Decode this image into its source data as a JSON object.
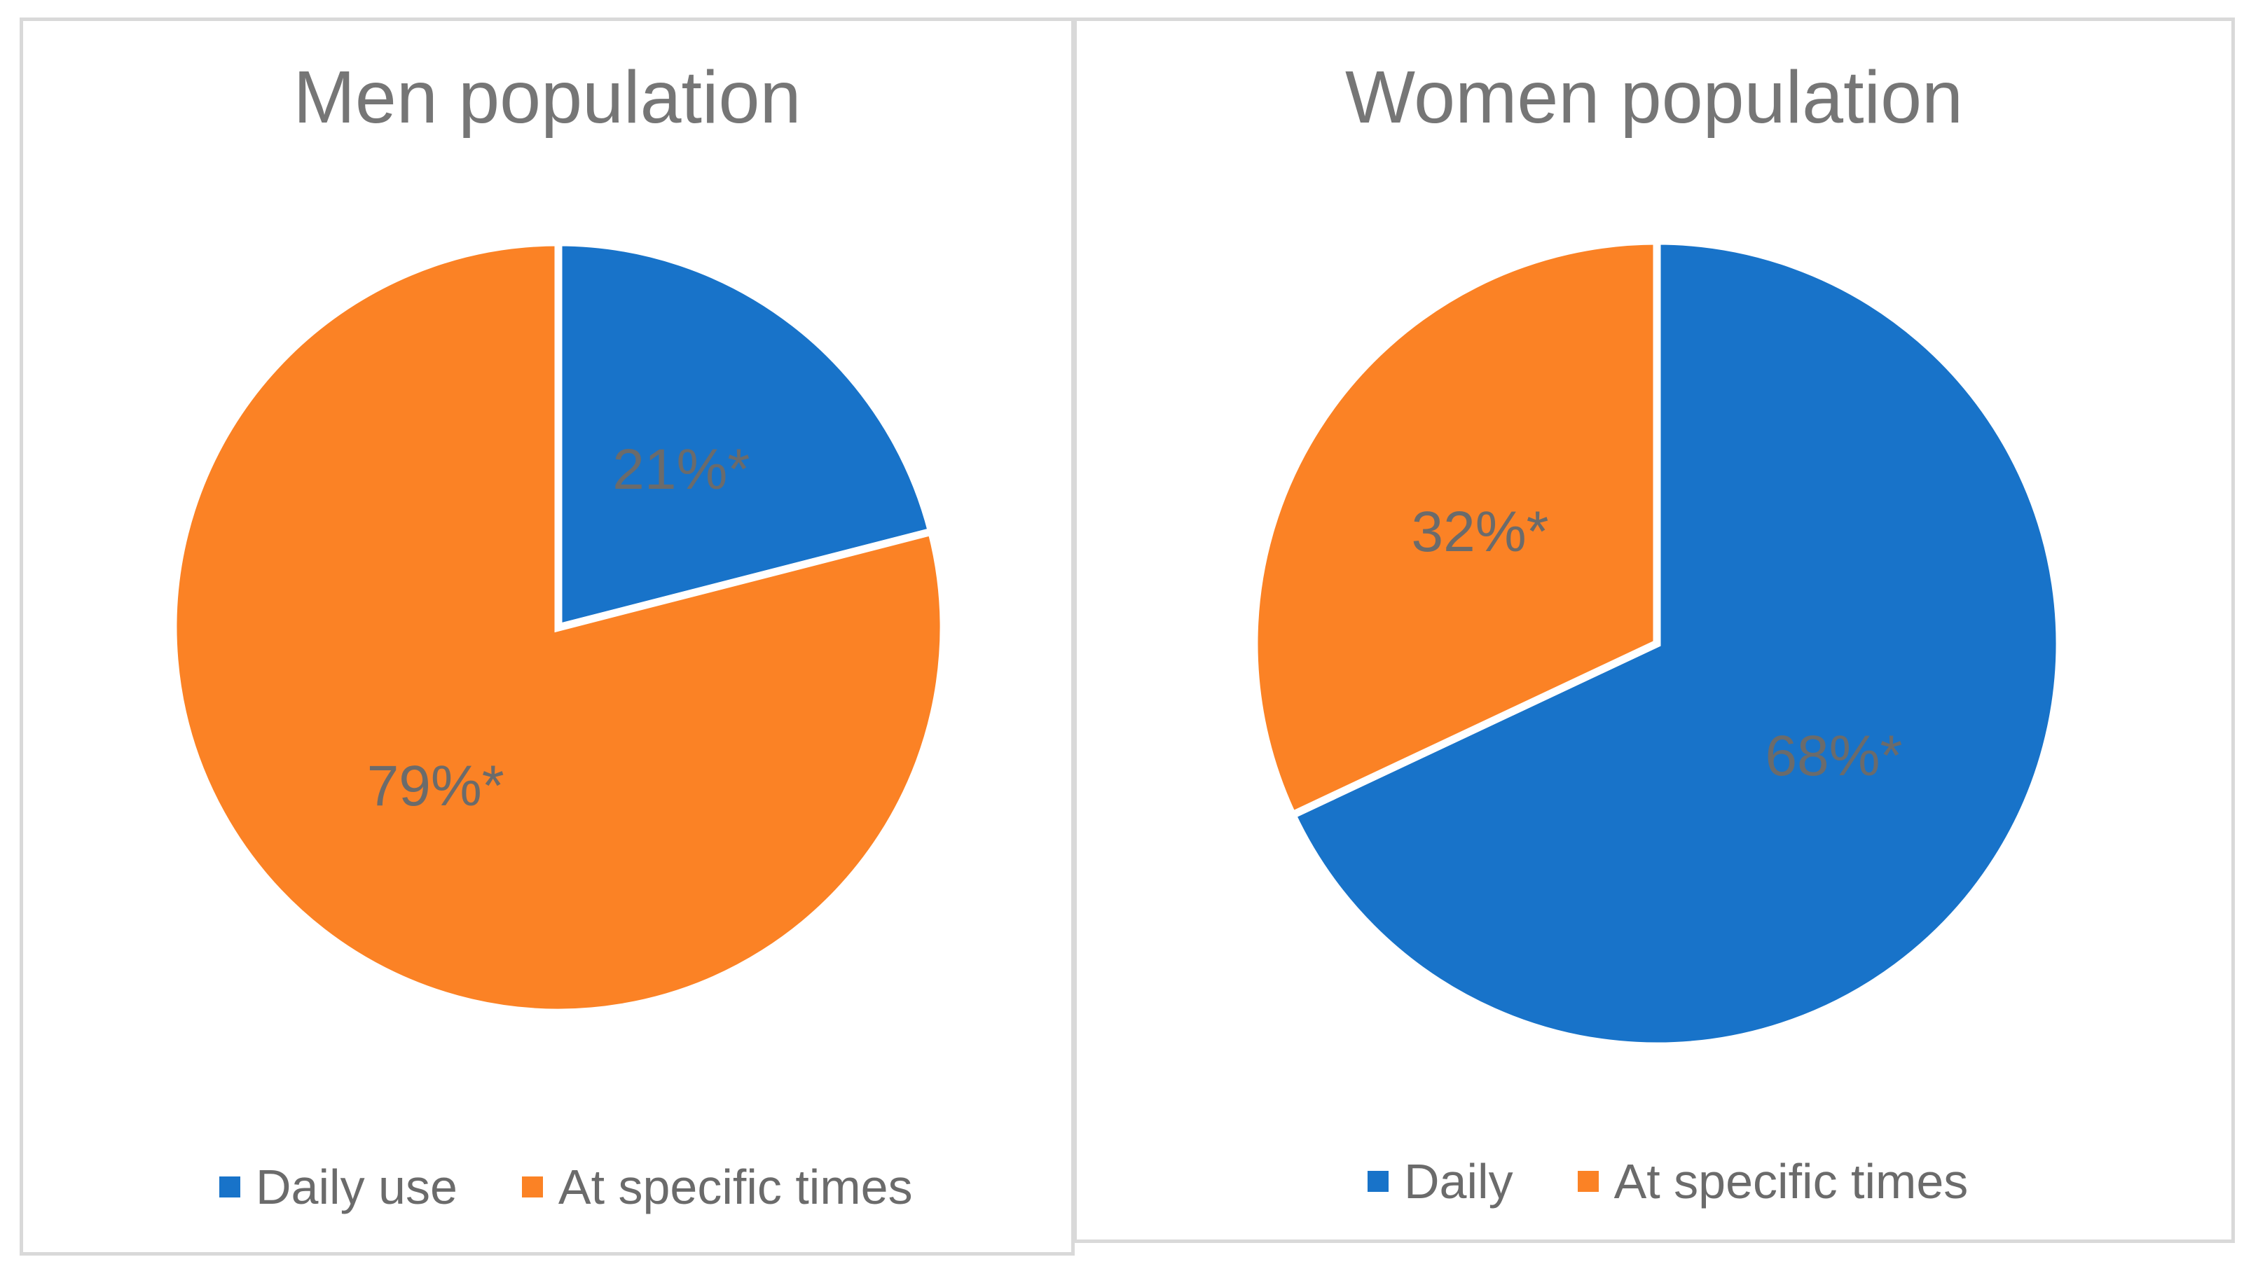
{
  "colors": {
    "daily": "#1873c9",
    "specific": "#fb8225",
    "text": "#6b6b6b",
    "border": "#d9d9d9"
  },
  "chart_data": [
    {
      "type": "pie",
      "title": "Men population",
      "categories": [
        "Daily use",
        "At specific times"
      ],
      "values": [
        21,
        79
      ],
      "labels": [
        "21%*",
        "79%*"
      ],
      "legend": [
        "Daily use",
        "At specific times"
      ],
      "legend_position": "bottom"
    },
    {
      "type": "pie",
      "title": "Women population",
      "categories": [
        "Daily",
        "At specific times"
      ],
      "values": [
        68,
        32
      ],
      "labels": [
        "68%*",
        "32%*"
      ],
      "legend": [
        "Daily",
        "At specific times"
      ],
      "legend_position": "bottom"
    }
  ]
}
